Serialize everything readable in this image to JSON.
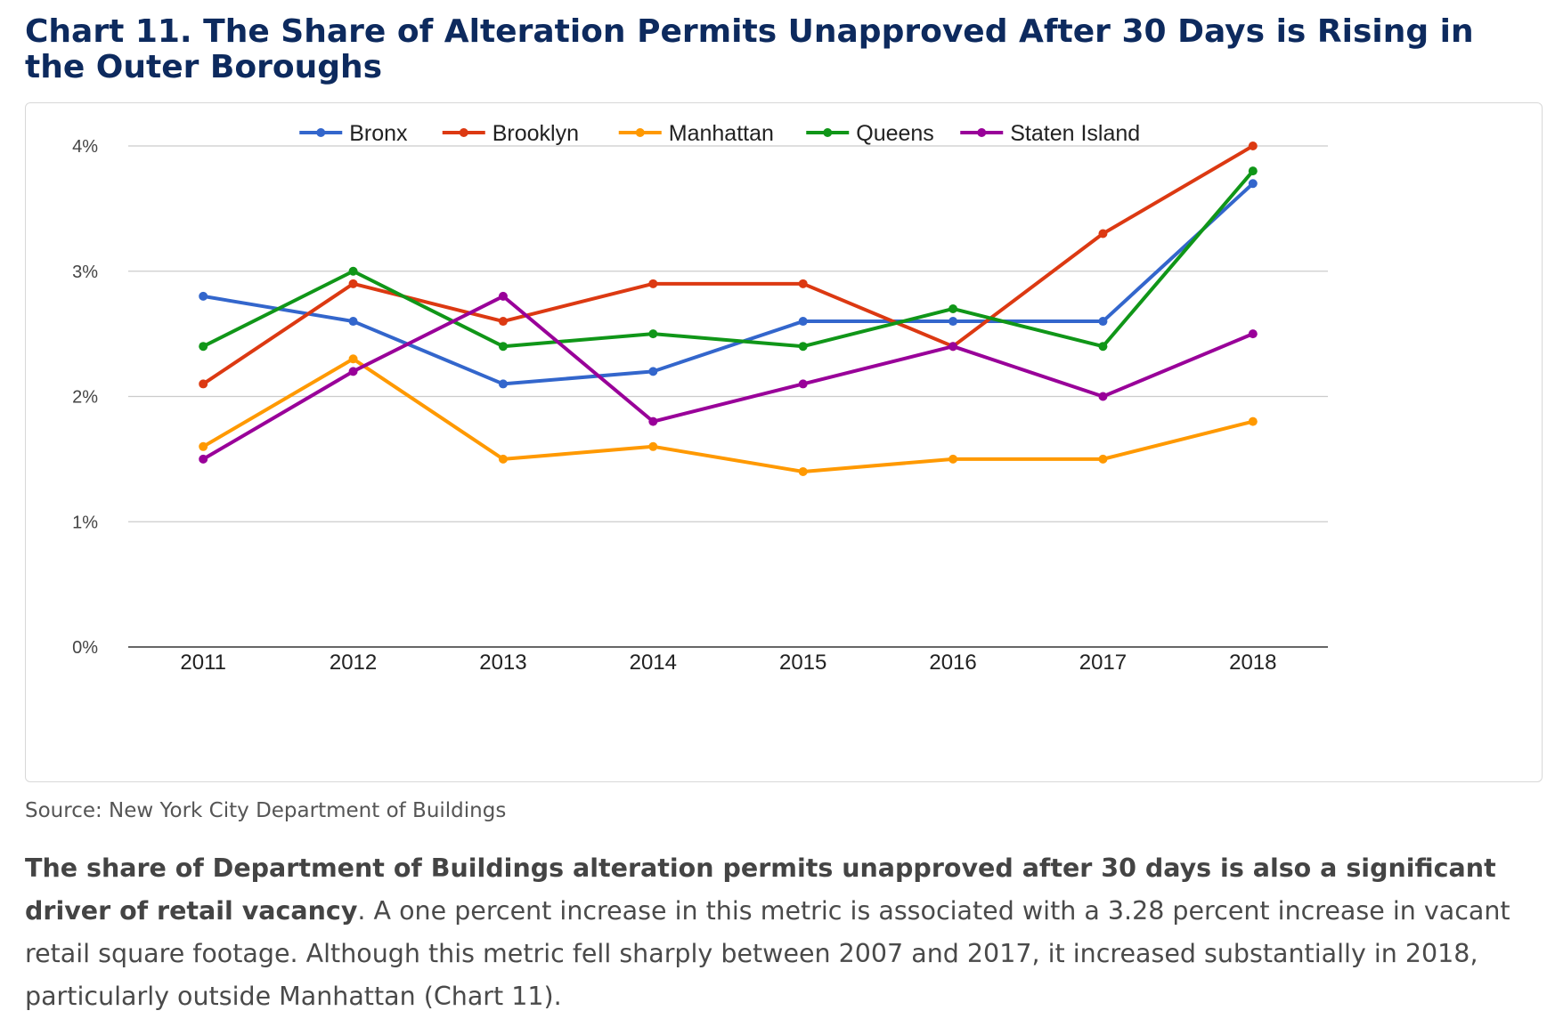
{
  "title": "Chart 11. The Share of Alteration Permits Unapproved After 30 Days is Rising in the Outer Boroughs",
  "source": "Source: New York City Department of Buildings",
  "body": {
    "bold": "The share of Department of Buildings alteration permits unapproved after 30 days is also a significant driver of retail vacancy",
    "rest": ". A one percent increase in this metric is associated with a 3.28 percent increase in vacant retail square footage. Although this metric fell sharply between 2007 and 2017, it increased substantially in 2018, particularly outside Manhattan (Chart 11)."
  },
  "chart_data": {
    "type": "line",
    "x": [
      "2011",
      "2012",
      "2013",
      "2014",
      "2015",
      "2016",
      "2017",
      "2018"
    ],
    "ylim": [
      0,
      4
    ],
    "yticks": [
      "0%",
      "1%",
      "2%",
      "3%",
      "4%"
    ],
    "grid": true,
    "legend_position": "top",
    "series": [
      {
        "name": "Bronx",
        "color": "#3366cc",
        "values": [
          2.8,
          2.6,
          2.1,
          2.2,
          2.6,
          2.6,
          2.6,
          3.7
        ]
      },
      {
        "name": "Brooklyn",
        "color": "#dc3912",
        "values": [
          2.1,
          2.9,
          2.6,
          2.9,
          2.9,
          2.4,
          3.3,
          4.0
        ]
      },
      {
        "name": "Manhattan",
        "color": "#ff9900",
        "values": [
          1.6,
          2.3,
          1.5,
          1.6,
          1.4,
          1.5,
          1.5,
          1.8
        ]
      },
      {
        "name": "Queens",
        "color": "#109618",
        "values": [
          2.4,
          3.0,
          2.4,
          2.5,
          2.4,
          2.7,
          2.4,
          3.8
        ]
      },
      {
        "name": "Staten Island",
        "color": "#990099",
        "values": [
          1.5,
          2.2,
          2.8,
          1.8,
          2.1,
          2.4,
          2.0,
          2.5
        ]
      }
    ]
  }
}
